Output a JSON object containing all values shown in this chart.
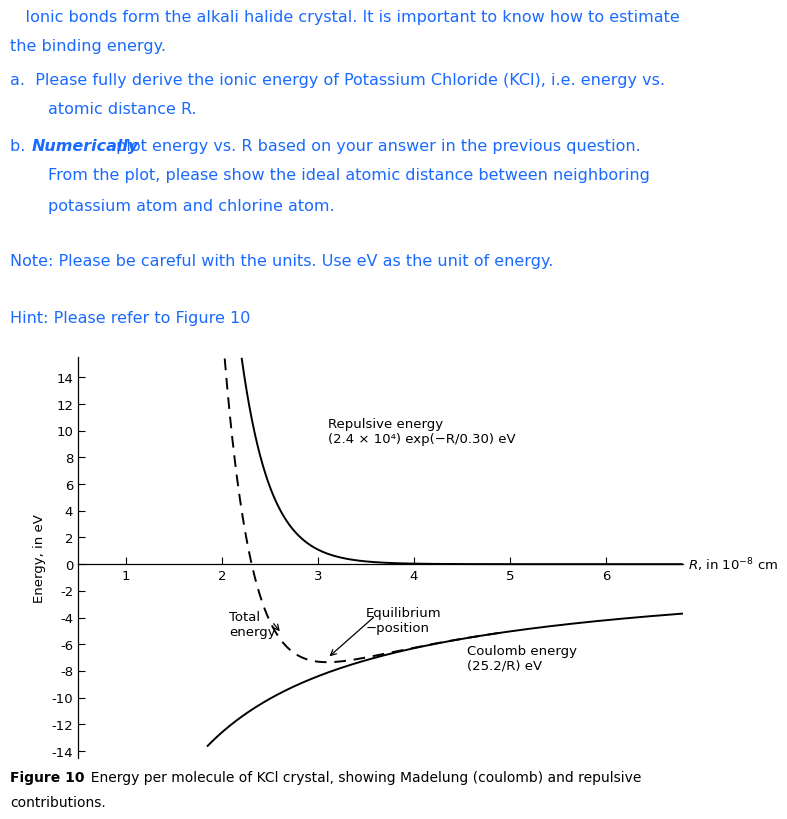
{
  "bg_color": "#ffffff",
  "text_color_blue": "#1a6aff",
  "text_color_black": "#000000",
  "para0_line1": "   Ionic bonds form the alkali halide crystal. It is important to know how to estimate",
  "para0_line2": "the binding energy.",
  "item_a_label": "a.",
  "item_a_text": "Please fully derive the ionic energy of Potassium Chloride (KCl), i.e. energy vs.\n    atomic distance R.",
  "item_b_label": "b.",
  "item_b_bold": "Numerically",
  "item_b_rest": " plot energy vs. R based on your answer in the previous question.\n    From the plot, please show the ideal atomic distance between neighboring\n    potassium atom and chlorine atom.",
  "note_text": "Note: Please be careful with the units. Use eV as the unit of energy.",
  "hint_text": "Hint: Please refer to Figure 10",
  "figure_caption_bold": "Figure 10",
  "figure_caption_rest": "   Energy per molecule of KCl crystal, showing Madelung (coulomb) and repulsive\ncontributions.",
  "xlabel_prefix": "6 ",
  "xlabel_suffix": "R, in 10−8 cm",
  "ylabel": "Energy, in eV",
  "xlim": [
    0.5,
    6.8
  ],
  "ylim": [
    -14.5,
    15.5
  ],
  "xticks": [
    1,
    2,
    3,
    4,
    5,
    6
  ],
  "yticks": [
    -14,
    -12,
    -10,
    -8,
    -6,
    -4,
    -2,
    0,
    2,
    4,
    6,
    8,
    10,
    12,
    14
  ],
  "repulsive_A": 24000,
  "repulsive_rho": 0.3,
  "coulomb_C": -25.2,
  "repulsive_label_line1": "Repulsive energy",
  "repulsive_label_line2": "(2.4 × 10⁴) exp(−R/0.30) eV",
  "coulomb_label_line1": "Coulomb energy",
  "coulomb_label_line2": "(25.2/R) eV",
  "total_label": "Total\nenergy",
  "equilibrium_label": "Equilibrium\n−position",
  "font_size_text": 11.5,
  "font_size_plot": 9.5,
  "font_size_caption": 10.0
}
